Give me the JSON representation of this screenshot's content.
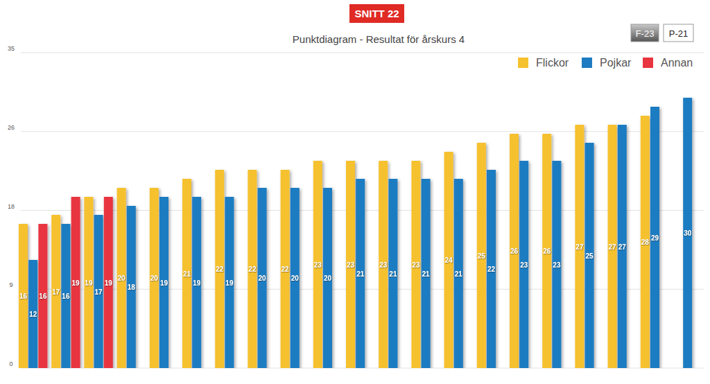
{
  "chart_data": {
    "type": "bar",
    "title": "Punktdiagram - Resultat för årskurs 4",
    "annotations": [
      "SNITT 22",
      "F-23",
      "P-21"
    ],
    "categories": [
      null,
      null,
      null,
      null,
      null,
      null,
      null,
      null,
      null,
      null,
      null,
      null,
      null,
      null,
      null,
      null,
      null,
      null,
      null,
      null,
      null
    ],
    "series": [
      {
        "name": "Flickor",
        "color": "#f6c12f",
        "values": [
          16,
          17,
          19,
          20,
          20,
          21,
          22,
          22,
          22,
          23,
          23,
          23,
          23,
          24,
          25,
          26,
          26,
          27,
          27,
          28,
          null
        ]
      },
      {
        "name": "Pojkar",
        "color": "#1e7bc1",
        "values": [
          12,
          16,
          17,
          18,
          19,
          19,
          19,
          20,
          20,
          20,
          21,
          21,
          21,
          21,
          22,
          23,
          23,
          25,
          27,
          29,
          30
        ]
      },
      {
        "name": "Annan",
        "color": "#e8353f",
        "values": [
          16,
          19,
          19,
          null,
          null,
          null,
          null,
          null,
          null,
          null,
          null,
          null,
          null,
          null,
          null,
          null,
          null,
          null,
          null,
          null,
          null
        ]
      }
    ],
    "ylim": [
      0,
      35
    ],
    "yticks": [
      0,
      {
        "value": 8.75,
        "label": "9"
      },
      {
        "value": 17.5,
        "label": "18"
      },
      {
        "value": 26.25,
        "label": "26"
      },
      35
    ],
    "grid": true,
    "legend": "top-right",
    "data_labels": true,
    "tick_labels": "y"
  }
}
